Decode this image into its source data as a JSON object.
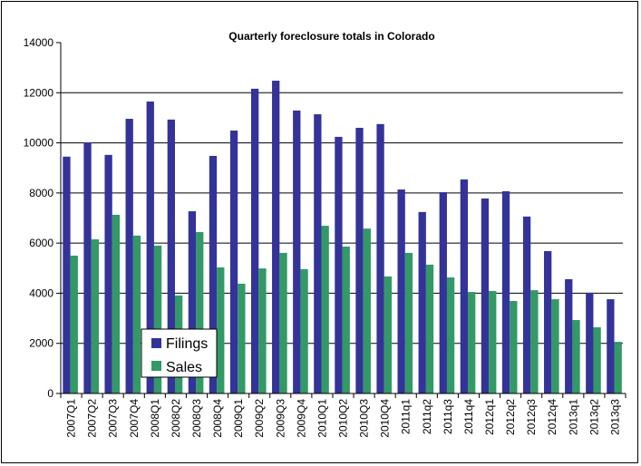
{
  "chart_data": {
    "type": "bar",
    "title": "Quarterly foreclosure totals in Colorado",
    "xlabel": "",
    "ylabel": "",
    "ylim": [
      0,
      14000
    ],
    "yticks": [
      0,
      2000,
      4000,
      6000,
      8000,
      10000,
      12000,
      14000
    ],
    "grid": true,
    "legend_position": "bottom-left",
    "categories": [
      "2007Q1",
      "2007Q2",
      "2007Q3",
      "2007Q4",
      "2008Q1",
      "2008Q2",
      "2008Q3",
      "2008Q4",
      "2009Q1",
      "2009Q2",
      "2009Q3",
      "2009Q4",
      "2010Q1",
      "2010Q2",
      "2010Q3",
      "2010Q4",
      "2011q1",
      "2011q2",
      "2011q3",
      "2011q4",
      "2012q1",
      "2012q2",
      "2012q3",
      "2012q4",
      "2013q1",
      "2013q2",
      "2013q3"
    ],
    "series": [
      {
        "name": "Filings",
        "color": "#333399",
        "values": [
          9450,
          10020,
          9520,
          10960,
          11650,
          10930,
          7270,
          9480,
          10490,
          12160,
          12480,
          11290,
          11140,
          10240,
          10600,
          10750,
          8140,
          7240,
          8030,
          8540,
          7780,
          8070,
          7060,
          5680,
          4560,
          4020,
          3760
        ]
      },
      {
        "name": "Sales",
        "color": "#339966",
        "values": [
          5500,
          6150,
          7130,
          6300,
          5900,
          3910,
          6440,
          5030,
          4380,
          4990,
          5610,
          4960,
          6690,
          5860,
          6580,
          4670,
          5610,
          5140,
          4630,
          4050,
          4090,
          3690,
          4120,
          3760,
          2930,
          2640,
          2060
        ]
      }
    ]
  }
}
